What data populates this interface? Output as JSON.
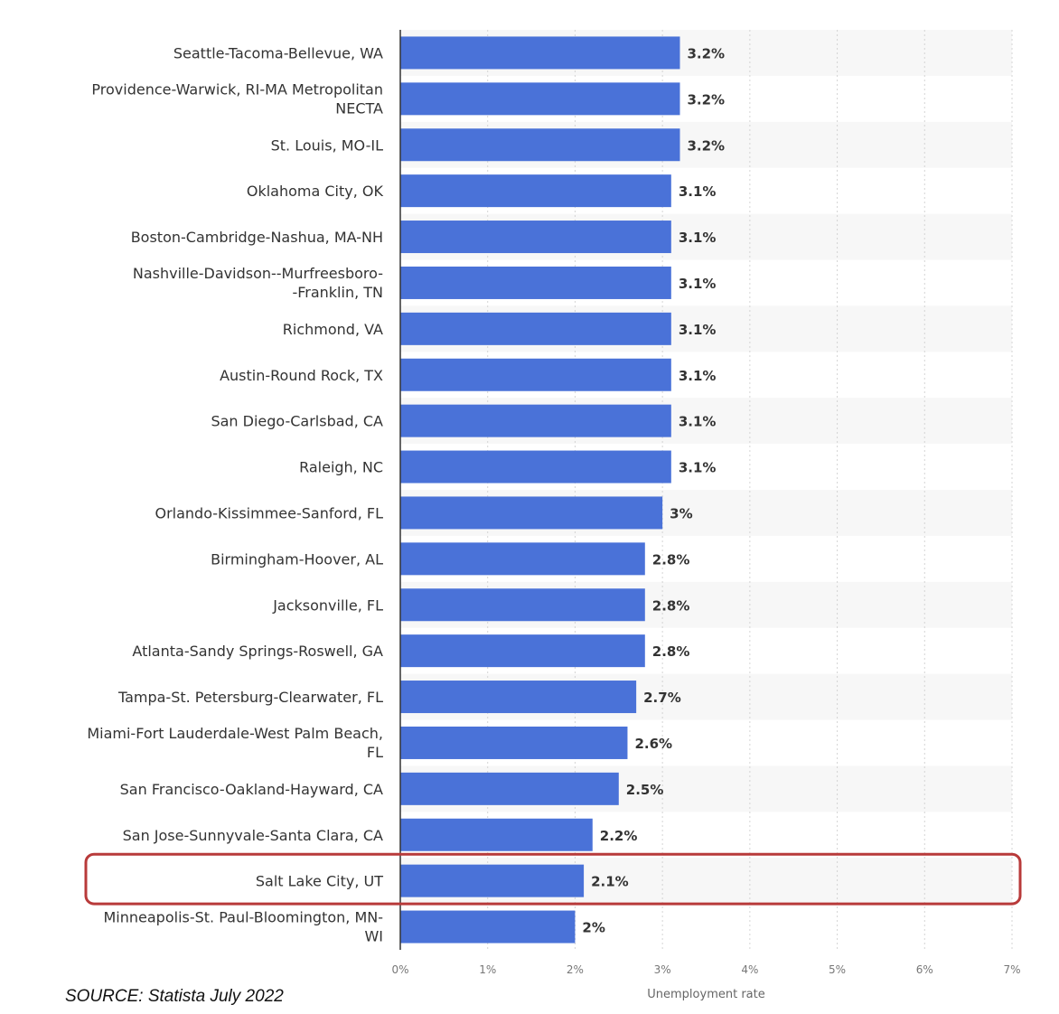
{
  "chart_data": {
    "type": "bar",
    "orientation": "horizontal",
    "categories": [
      "Seattle-Tacoma-Bellevue, WA",
      "Providence-Warwick, RI-MA Metropolitan NECTA",
      "St. Louis, MO-IL",
      "Oklahoma City, OK",
      "Boston-Cambridge-Nashua, MA-NH",
      "Nashville-Davidson--Murfreesboro--Franklin, TN",
      "Richmond, VA",
      "Austin-Round Rock, TX",
      "San Diego-Carlsbad, CA",
      "Raleigh, NC",
      "Orlando-Kissimmee-Sanford, FL",
      "Birmingham-Hoover, AL",
      "Jacksonville, FL",
      "Atlanta-Sandy Springs-Roswell, GA",
      "Tampa-St. Petersburg-Clearwater, FL",
      "Miami-Fort Lauderdale-West Palm Beach, FL",
      "San Francisco-Oakland-Hayward, CA",
      "San Jose-Sunnyvale-Santa Clara, CA",
      "Salt Lake City, UT",
      "Minneapolis-St. Paul-Bloomington, MN-WI"
    ],
    "category_lines": [
      [
        "Seattle-Tacoma-Bellevue, WA"
      ],
      [
        "Providence-Warwick, RI-MA Metropolitan",
        "NECTA"
      ],
      [
        "St. Louis, MO-IL"
      ],
      [
        "Oklahoma City, OK"
      ],
      [
        "Boston-Cambridge-Nashua, MA-NH"
      ],
      [
        "Nashville-Davidson--Murfreesboro-",
        "-Franklin, TN"
      ],
      [
        "Richmond, VA"
      ],
      [
        "Austin-Round Rock, TX"
      ],
      [
        "San Diego-Carlsbad, CA"
      ],
      [
        "Raleigh, NC"
      ],
      [
        "Orlando-Kissimmee-Sanford, FL"
      ],
      [
        "Birmingham-Hoover, AL"
      ],
      [
        "Jacksonville, FL"
      ],
      [
        "Atlanta-Sandy Springs-Roswell, GA"
      ],
      [
        "Tampa-St. Petersburg-Clearwater, FL"
      ],
      [
        "Miami-Fort Lauderdale-West Palm Beach,",
        "FL"
      ],
      [
        "San Francisco-Oakland-Hayward, CA"
      ],
      [
        "San Jose-Sunnyvale-Santa Clara, CA"
      ],
      [
        "Salt Lake City, UT"
      ],
      [
        "Minneapolis-St. Paul-Bloomington, MN-",
        "WI"
      ]
    ],
    "values": [
      3.2,
      3.2,
      3.2,
      3.1,
      3.1,
      3.1,
      3.1,
      3.1,
      3.1,
      3.1,
      3.0,
      2.8,
      2.8,
      2.8,
      2.7,
      2.6,
      2.5,
      2.2,
      2.1,
      2.0
    ],
    "value_labels": [
      "3.2%",
      "3.2%",
      "3.2%",
      "3.1%",
      "3.1%",
      "3.1%",
      "3.1%",
      "3.1%",
      "3.1%",
      "3.1%",
      "3%",
      "2.8%",
      "2.8%",
      "2.8%",
      "2.7%",
      "2.6%",
      "2.5%",
      "2.2%",
      "2.1%",
      "2%"
    ],
    "x_ticks": [
      0,
      1,
      2,
      3,
      4,
      5,
      6,
      7
    ],
    "x_tick_labels": [
      "0%",
      "1%",
      "2%",
      "3%",
      "4%",
      "5%",
      "6%",
      "7%"
    ],
    "xlim": [
      0,
      7
    ],
    "xlabel": "Unemployment rate",
    "ylabel": "",
    "title": "",
    "grid": "vertical dashed",
    "highlighted_category": "Salt Lake City, UT",
    "bar_color": "#4a72d8",
    "highlight_color": "#b83a3a"
  },
  "source_note": "SOURCE: Statista July 2022"
}
